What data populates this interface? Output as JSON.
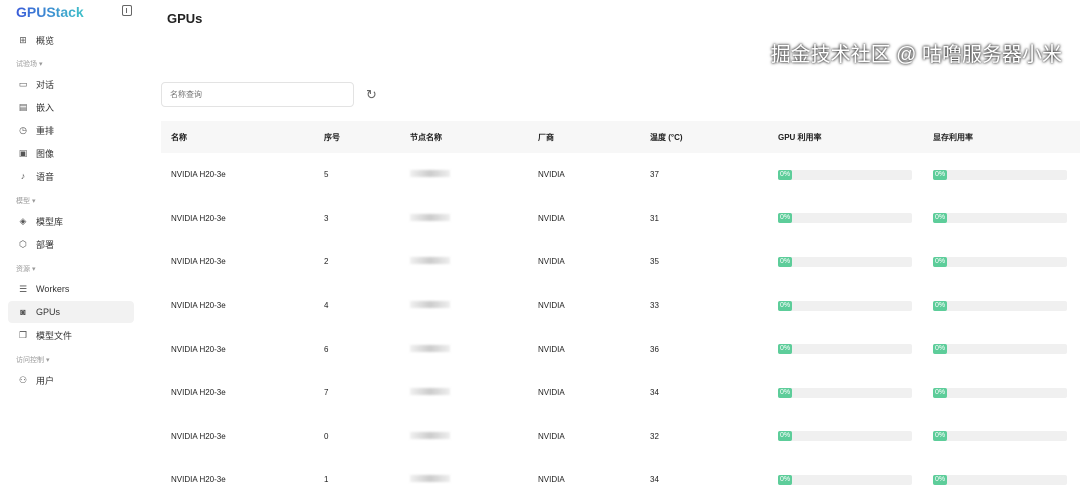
{
  "app": {
    "logo": "GPUStack"
  },
  "sidebar": {
    "overview": "概览",
    "groups": [
      "试验场",
      "模型",
      "资源",
      "访问控制"
    ],
    "items": [
      {
        "label": "对话",
        "icon": "chat-icon"
      },
      {
        "label": "嵌入",
        "icon": "embed-icon"
      },
      {
        "label": "重排",
        "icon": "rerank-icon"
      },
      {
        "label": "图像",
        "icon": "image-icon"
      },
      {
        "label": "语音",
        "icon": "audio-icon"
      },
      {
        "label": "模型库",
        "icon": "layers-icon"
      },
      {
        "label": "部署",
        "icon": "cube-icon"
      },
      {
        "label": "Workers",
        "icon": "server-icon"
      },
      {
        "label": "GPUs",
        "icon": "chip-icon"
      },
      {
        "label": "模型文件",
        "icon": "files-icon"
      },
      {
        "label": "用户",
        "icon": "users-icon"
      }
    ]
  },
  "page": {
    "title": "GPUs",
    "search_placeholder": "名称查询"
  },
  "table": {
    "headers": [
      "名称",
      "序号",
      "节点名称",
      "厂商",
      "温度 (°C)",
      "GPU 利用率",
      "显存利用率"
    ],
    "rows": [
      {
        "name": "NVIDIA H20-3e",
        "index": "5",
        "vendor": "NVIDIA",
        "temp": "37",
        "gpu": "0%",
        "mem": "0%"
      },
      {
        "name": "NVIDIA H20-3e",
        "index": "3",
        "vendor": "NVIDIA",
        "temp": "31",
        "gpu": "0%",
        "mem": "0%"
      },
      {
        "name": "NVIDIA H20-3e",
        "index": "2",
        "vendor": "NVIDIA",
        "temp": "35",
        "gpu": "0%",
        "mem": "0%"
      },
      {
        "name": "NVIDIA H20-3e",
        "index": "4",
        "vendor": "NVIDIA",
        "temp": "33",
        "gpu": "0%",
        "mem": "0%"
      },
      {
        "name": "NVIDIA H20-3e",
        "index": "6",
        "vendor": "NVIDIA",
        "temp": "36",
        "gpu": "0%",
        "mem": "0%"
      },
      {
        "name": "NVIDIA H20-3e",
        "index": "7",
        "vendor": "NVIDIA",
        "temp": "34",
        "gpu": "0%",
        "mem": "0%"
      },
      {
        "name": "NVIDIA H20-3e",
        "index": "0",
        "vendor": "NVIDIA",
        "temp": "32",
        "gpu": "0%",
        "mem": "0%"
      },
      {
        "name": "NVIDIA H20-3e",
        "index": "1",
        "vendor": "NVIDIA",
        "temp": "34",
        "gpu": "0%",
        "mem": "0%"
      }
    ]
  },
  "watermark": "掘金技术社区 @ 咕噜服务器小米",
  "colors": {
    "progress": "#5dcd9a",
    "active_bg": "#f2f2f2"
  }
}
